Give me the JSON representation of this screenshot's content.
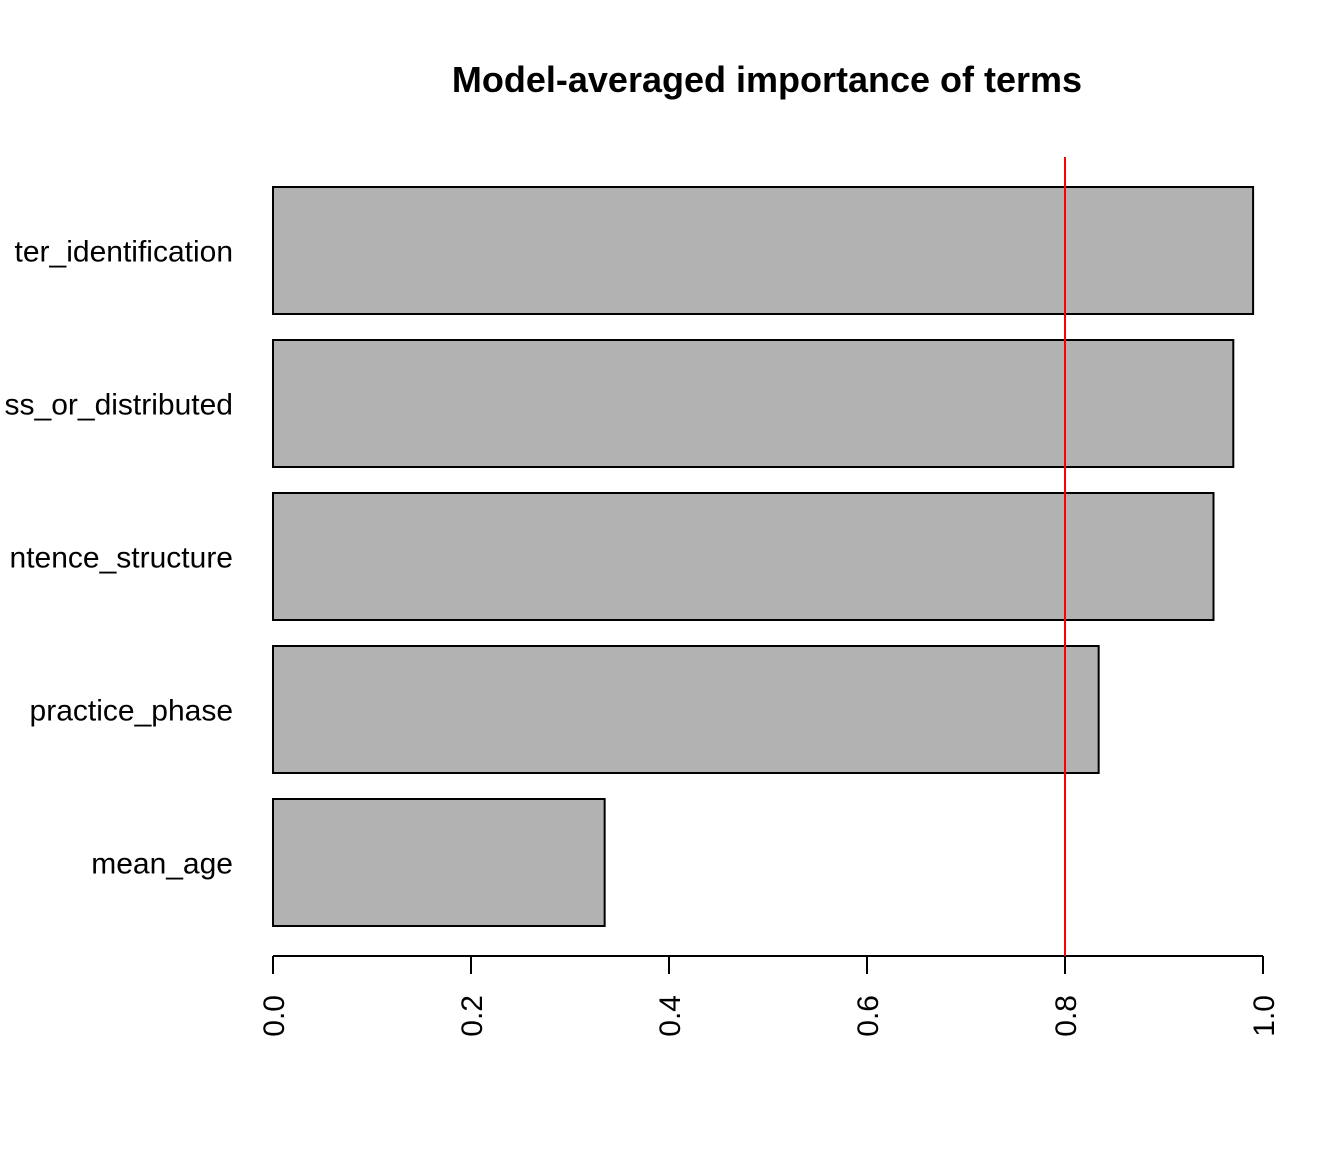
{
  "chart_data": {
    "type": "bar",
    "orientation": "horizontal",
    "title": "Model-averaged importance of terms",
    "xlabel": "",
    "ylabel": "",
    "categories": [
      "ter_identification",
      "ss_or_distributed",
      "ntence_structure",
      "practice_phase",
      "mean_age"
    ],
    "values": [
      0.99,
      0.97,
      0.95,
      0.834,
      0.335
    ],
    "xlim": [
      0,
      1
    ],
    "x_ticks": [
      "0.0",
      "0.2",
      "0.4",
      "0.6",
      "0.8",
      "1.0"
    ],
    "x_tick_values": [
      0,
      0.2,
      0.4,
      0.6,
      0.8,
      1.0
    ],
    "reference_line": {
      "value": 0.8,
      "color": "#ff0000"
    },
    "bar_fill": "#b2b2b2",
    "bar_stroke": "#000000",
    "grid": false,
    "legend": "none"
  }
}
